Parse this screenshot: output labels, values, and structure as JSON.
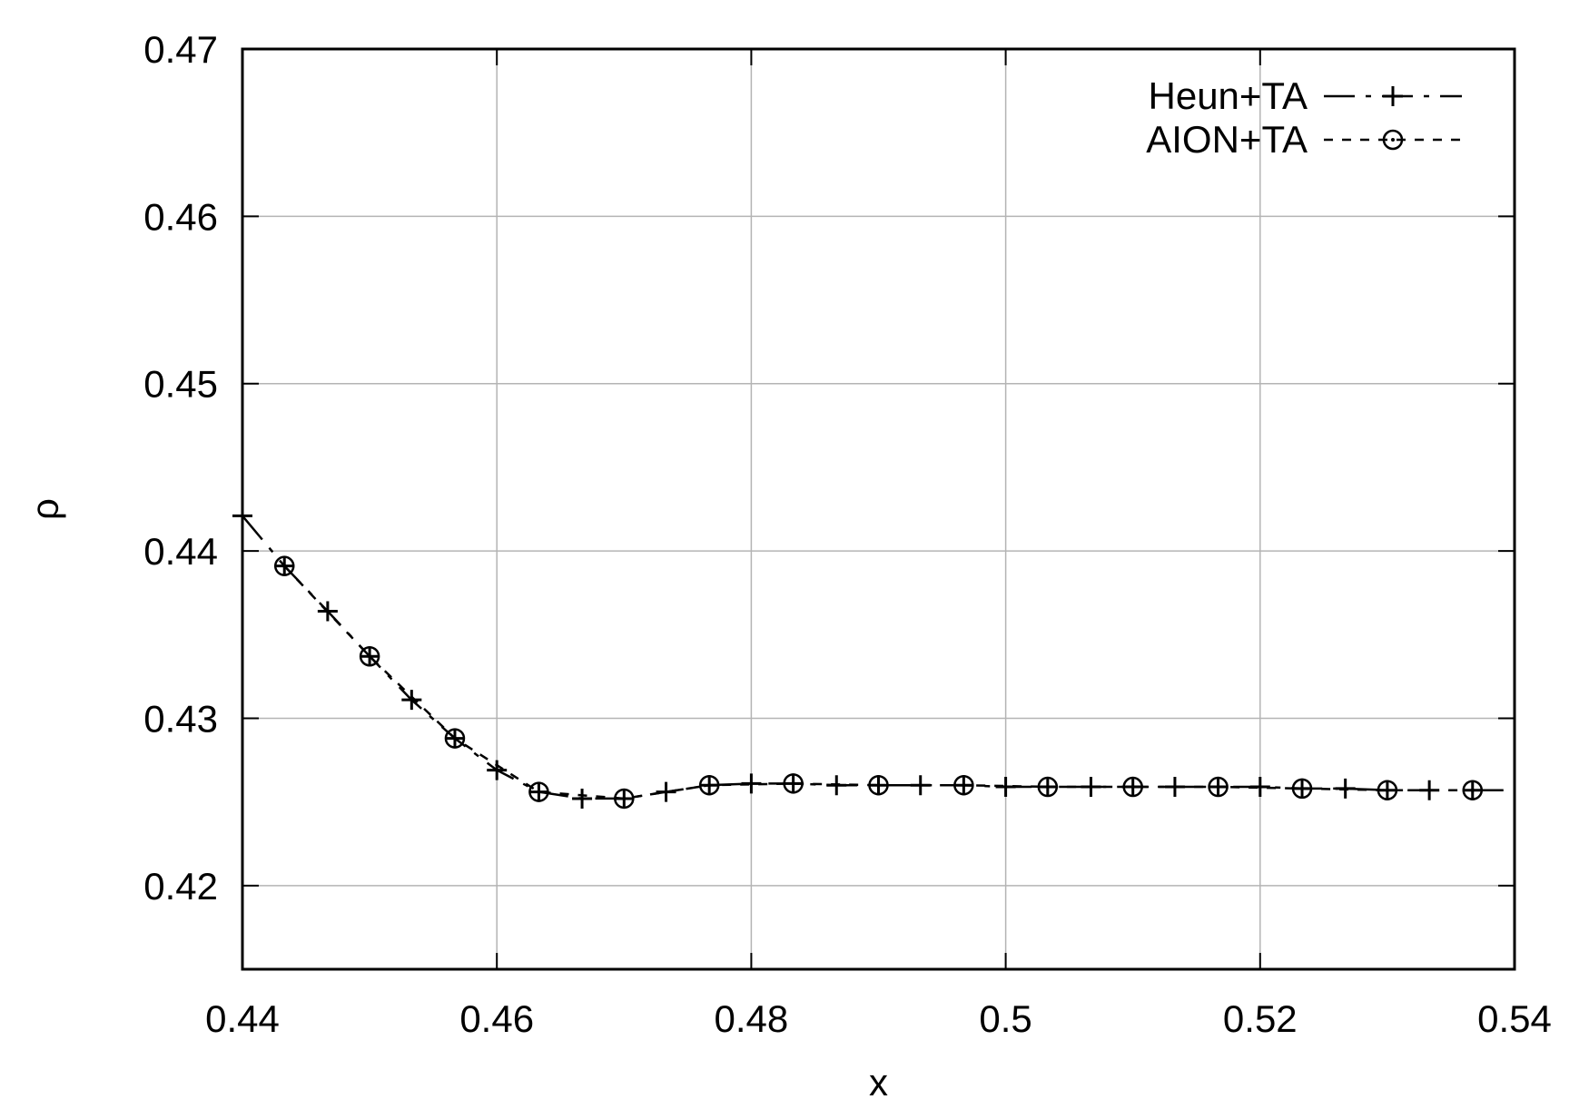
{
  "chart_data": {
    "type": "line",
    "xlabel": "x",
    "ylabel": "ρ",
    "xlim": [
      0.44,
      0.54
    ],
    "ylim": [
      0.415,
      0.47
    ],
    "x_ticks": [
      0.44,
      0.46,
      0.48,
      0.5,
      0.52,
      0.54
    ],
    "x_tick_labels": [
      "0.44",
      "0.46",
      "0.48",
      "0.5",
      "0.52",
      "0.54"
    ],
    "y_ticks": [
      0.42,
      0.43,
      0.44,
      0.45,
      0.46,
      0.47
    ],
    "y_tick_labels": [
      "0.42",
      "0.43",
      "0.44",
      "0.45",
      "0.46",
      "0.47"
    ],
    "grid": true,
    "legend_position": "top-right",
    "series": [
      {
        "name": "Heun+TA",
        "line_style": "dash-dot",
        "marker": "plus",
        "color": "#000000",
        "x": [
          0.44,
          0.4433,
          0.4467,
          0.45,
          0.4533,
          0.4567,
          0.46,
          0.4633,
          0.4667,
          0.47,
          0.4733,
          0.4767,
          0.48,
          0.4833,
          0.4867,
          0.49,
          0.4933,
          0.4967,
          0.5,
          0.5033,
          0.5067,
          0.51,
          0.5133,
          0.5167,
          0.52,
          0.5233,
          0.5267,
          0.53,
          0.5333,
          0.5367
        ],
        "y": [
          0.4421,
          0.4391,
          0.4364,
          0.4337,
          0.4311,
          0.4288,
          0.4269,
          0.4256,
          0.4252,
          0.4252,
          0.4256,
          0.426,
          0.4261,
          0.4261,
          0.426,
          0.426,
          0.426,
          0.426,
          0.4259,
          0.4259,
          0.4259,
          0.4259,
          0.4259,
          0.4259,
          0.4259,
          0.4258,
          0.4258,
          0.4257,
          0.4257,
          0.4257
        ]
      },
      {
        "name": "AION+TA",
        "line_style": "dashed",
        "marker": "circle-dot",
        "color": "#000000",
        "x": [
          0.4433,
          0.45,
          0.4567,
          0.4633,
          0.47,
          0.4767,
          0.4833,
          0.49,
          0.4967,
          0.5033,
          0.51,
          0.5167,
          0.5233,
          0.53,
          0.5367
        ],
        "y": [
          0.4391,
          0.4337,
          0.4288,
          0.4256,
          0.4252,
          0.426,
          0.4261,
          0.426,
          0.426,
          0.4259,
          0.4259,
          0.4259,
          0.4258,
          0.4257,
          0.4257
        ]
      }
    ]
  }
}
